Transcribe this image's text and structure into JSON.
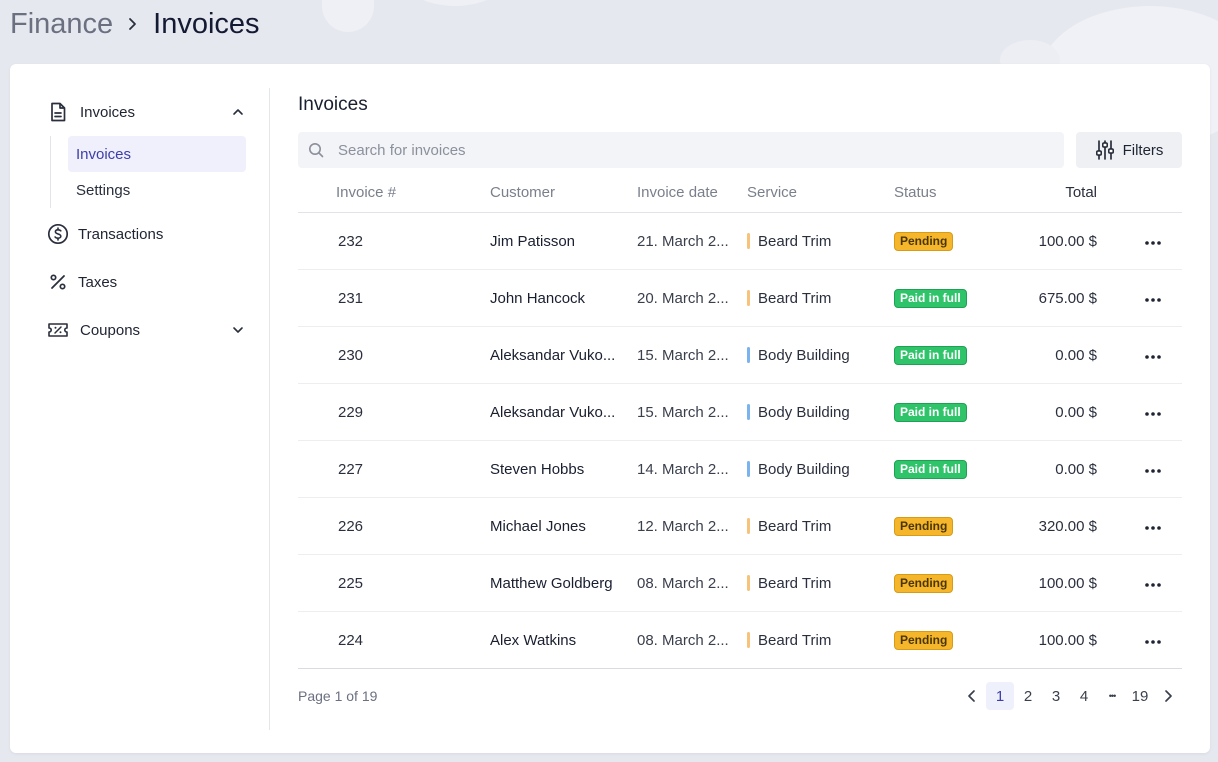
{
  "breadcrumb": {
    "parent": "Finance",
    "current": "Invoices"
  },
  "sidebar": {
    "section_label": "Invoices",
    "sub_items": [
      {
        "label": "Invoices",
        "active": true
      },
      {
        "label": "Settings",
        "active": false
      }
    ],
    "items": [
      {
        "label": "Transactions",
        "icon": "dollar-circle-icon"
      },
      {
        "label": "Taxes",
        "icon": "percent-icon"
      },
      {
        "label": "Coupons",
        "icon": "coupon-ticket-icon"
      }
    ]
  },
  "main": {
    "title": "Invoices",
    "search_placeholder": "Search for invoices",
    "filters_label": "Filters"
  },
  "table": {
    "headers": {
      "number": "Invoice #",
      "customer": "Customer",
      "date": "Invoice date",
      "service": "Service",
      "status": "Status",
      "total": "Total"
    },
    "rows": [
      {
        "number": "232",
        "customer": "Jim Patisson",
        "date": "21. March 2...",
        "service": "Beard Trim",
        "status": "Pending",
        "total": "100.00 $"
      },
      {
        "number": "231",
        "customer": "John Hancock",
        "date": "20. March 2...",
        "service": "Beard Trim",
        "status": "Paid in full",
        "total": "675.00 $"
      },
      {
        "number": "230",
        "customer": "Aleksandar Vuko...",
        "date": "15. March 2...",
        "service": "Body Building",
        "status": "Paid in full",
        "total": "0.00 $"
      },
      {
        "number": "229",
        "customer": "Aleksandar Vuko...",
        "date": "15. March 2...",
        "service": "Body Building",
        "status": "Paid in full",
        "total": "0.00 $"
      },
      {
        "number": "227",
        "customer": "Steven Hobbs",
        "date": "14. March 2...",
        "service": "Body Building",
        "status": "Paid in full",
        "total": "0.00 $"
      },
      {
        "number": "226",
        "customer": "Michael Jones",
        "date": "12. March 2...",
        "service": "Beard Trim",
        "status": "Pending",
        "total": "320.00 $"
      },
      {
        "number": "225",
        "customer": "Matthew Goldberg",
        "date": "08. March 2...",
        "service": "Beard Trim",
        "status": "Pending",
        "total": "100.00 $"
      },
      {
        "number": "224",
        "customer": "Alex Watkins",
        "date": "08. March 2...",
        "service": "Beard Trim",
        "status": "Pending",
        "total": "100.00 $"
      }
    ]
  },
  "colors": {
    "beard_trim": "#f7c27a",
    "body_building": "#7ab3ee",
    "pending": "#f5b62c",
    "paid": "#2fc46a"
  },
  "pagination": {
    "text": "Page 1 of 19",
    "pages": [
      "1",
      "2",
      "3",
      "4"
    ],
    "ellipsis": "•••",
    "last": "19",
    "current": "1"
  }
}
